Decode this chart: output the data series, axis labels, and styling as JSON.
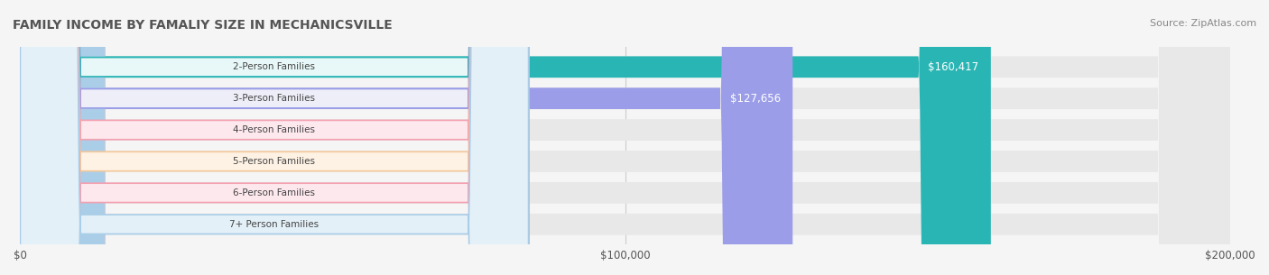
{
  "title": "FAMILY INCOME BY FAMALIY SIZE IN MECHANICSVILLE",
  "source": "Source: ZipAtlas.com",
  "categories": [
    "2-Person Families",
    "3-Person Families",
    "4-Person Families",
    "5-Person Families",
    "6-Person Families",
    "7+ Person Families"
  ],
  "values": [
    160417,
    127656,
    0,
    0,
    0,
    0
  ],
  "bar_colors": [
    "#2ab5b5",
    "#9b9de8",
    "#f4a0b0",
    "#f5c99a",
    "#f4a0b0",
    "#aacde8"
  ],
  "label_bg_colors": [
    "#e8f8f8",
    "#eeeef8",
    "#fde8ee",
    "#fef2e4",
    "#fde8ee",
    "#e4f0f8"
  ],
  "label_border_colors": [
    "#2ab5b5",
    "#9b9de8",
    "#f4a0b0",
    "#f5c99a",
    "#f4a0b0",
    "#aacde8"
  ],
  "xlim": [
    0,
    200000
  ],
  "xticks": [
    0,
    100000,
    200000
  ],
  "xticklabels": [
    "$0",
    "$100,000",
    "$200,000"
  ],
  "background_color": "#f5f5f5",
  "bar_bg_color": "#e8e8e8",
  "value_label_color": "#ffffff",
  "zero_label_color": "#555555",
  "title_color": "#555555",
  "source_color": "#888888"
}
